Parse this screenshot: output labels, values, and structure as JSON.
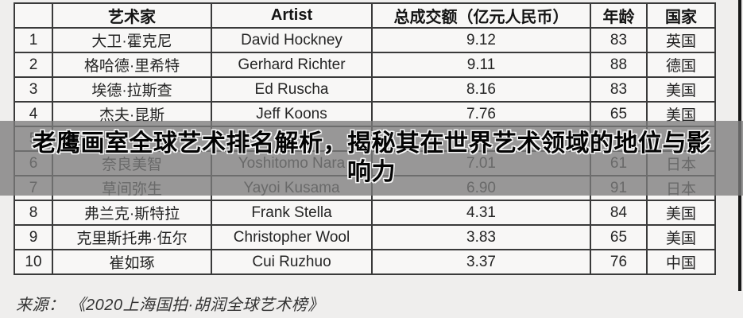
{
  "colors": {
    "background": "#efeeed",
    "table_background": "#f8f7f6",
    "table_border": "#3a3a3a",
    "overlay_band": "rgba(124,124,124,0.78)",
    "headline_text": "#040404",
    "headline_outline": "#f4f4f4"
  },
  "chart_data": {
    "type": "table",
    "title": "老鹰画室全球艺术排名解析，揭秘其在世界艺术领域的地位与影响力",
    "title_line1": "老鹰画室全球艺术排名解析，揭秘其在世界艺术领域的地位与影",
    "title_line2": "响力",
    "source": "来源：  《2020上海国拍·胡润全球艺术榜》",
    "columns": [
      "",
      "艺术家",
      "Artist",
      "总成交额（亿元人民币）",
      "年龄",
      "国家"
    ],
    "rows": [
      {
        "rank": "1",
        "artist_cn": "大卫·霍克尼",
        "artist_en": "David Hockney",
        "sales": "9.12",
        "age": "83",
        "country": "英国"
      },
      {
        "rank": "2",
        "artist_cn": "格哈德·里希特",
        "artist_en": "Gerhard Richter",
        "sales": "9.11",
        "age": "88",
        "country": "德国"
      },
      {
        "rank": "3",
        "artist_cn": "埃德·拉斯查",
        "artist_en": "Ed Ruscha",
        "sales": "8.16",
        "age": "83",
        "country": "美国"
      },
      {
        "rank": "4",
        "artist_cn": "杰夫·昆斯",
        "artist_en": "Jeff Koons",
        "sales": "7.76",
        "age": "65",
        "country": "美国"
      },
      {
        "rank": "5",
        "artist_cn": "",
        "artist_en": "",
        "sales": "",
        "age": "",
        "country": "",
        "obscured_by_overlay": true
      },
      {
        "rank": "6",
        "artist_cn": "奈良美智",
        "artist_en": "Yoshitomo Nara",
        "sales": "7.01",
        "age": "61",
        "country": "日本"
      },
      {
        "rank": "7",
        "artist_cn": "草间弥生",
        "artist_en": "Yayoi Kusama",
        "sales": "6.90",
        "age": "91",
        "country": "日本"
      },
      {
        "rank": "8",
        "artist_cn": "弗兰克·斯特拉",
        "artist_en": "Frank Stella",
        "sales": "4.31",
        "age": "84",
        "country": "美国"
      },
      {
        "rank": "9",
        "artist_cn": "克里斯托弗·伍尔",
        "artist_en": "Christopher Wool",
        "sales": "3.83",
        "age": "65",
        "country": "美国"
      },
      {
        "rank": "10",
        "artist_cn": "崔如琢",
        "artist_en": "Cui Ruzhuo",
        "sales": "3.37",
        "age": "76",
        "country": "中国"
      }
    ]
  }
}
